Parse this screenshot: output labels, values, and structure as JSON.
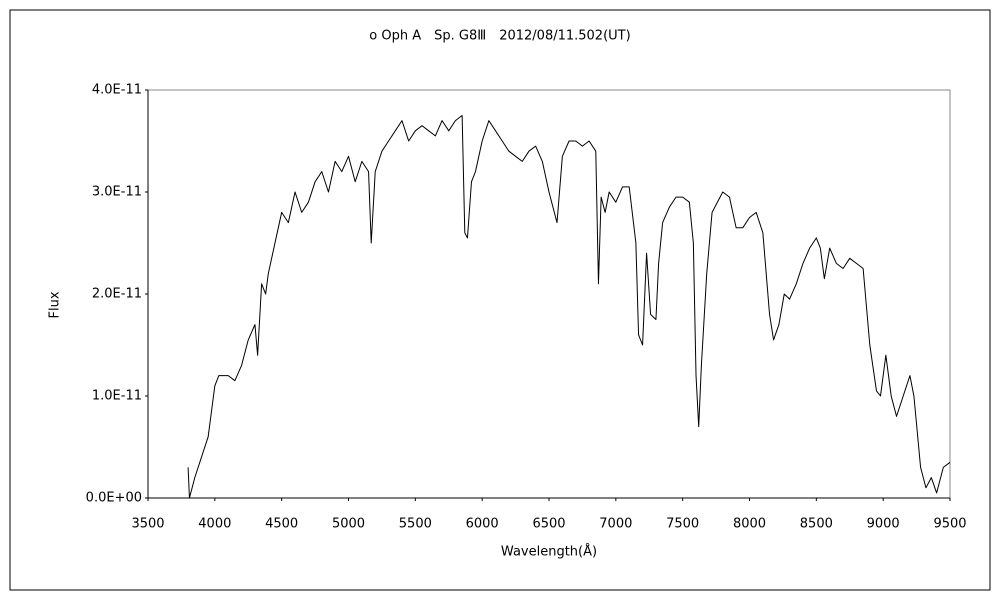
{
  "chart_data": {
    "type": "line",
    "title": "ο Oph A　Sp. G8Ⅲ　2012/08/11.502(UT)",
    "x_label": "Wavelength(Å)",
    "y_label": "Flux",
    "xlim": [
      3500,
      9500
    ],
    "xticks": [
      3500,
      4000,
      4500,
      5000,
      5500,
      6000,
      6500,
      7000,
      7500,
      8000,
      8500,
      9000,
      9500
    ],
    "ylim": [
      0,
      4e-11
    ],
    "yticks": [
      {
        "value": 0,
        "label": "0.0E+00"
      },
      {
        "value": 1e-11,
        "label": "1.0E-11"
      },
      {
        "value": 2e-11,
        "label": "2.0E-11"
      },
      {
        "value": 3e-11,
        "label": "3.0E-11"
      },
      {
        "value": 4e-11,
        "label": "4.0E-11"
      }
    ],
    "grid": false,
    "series": [
      {
        "color": "#000000",
        "x": [
          3800,
          3810,
          3850,
          3900,
          3950,
          4000,
          4030,
          4100,
          4150,
          4200,
          4250,
          4300,
          4320,
          4350,
          4380,
          4400,
          4450,
          4500,
          4550,
          4600,
          4650,
          4700,
          4750,
          4800,
          4850,
          4900,
          4950,
          5000,
          5050,
          5100,
          5150,
          5170,
          5200,
          5250,
          5300,
          5350,
          5400,
          5450,
          5500,
          5550,
          5600,
          5650,
          5700,
          5750,
          5800,
          5850,
          5870,
          5890,
          5920,
          5950,
          6000,
          6050,
          6100,
          6150,
          6200,
          6250,
          6300,
          6350,
          6400,
          6450,
          6500,
          6520,
          6560,
          6600,
          6650,
          6700,
          6750,
          6800,
          6850,
          6870,
          6890,
          6920,
          6950,
          7000,
          7050,
          7100,
          7150,
          7170,
          7200,
          7230,
          7260,
          7300,
          7320,
          7350,
          7400,
          7450,
          7500,
          7550,
          7580,
          7600,
          7620,
          7640,
          7680,
          7720,
          7800,
          7850,
          7900,
          7950,
          8000,
          8050,
          8100,
          8150,
          8180,
          8220,
          8260,
          8300,
          8350,
          8400,
          8450,
          8500,
          8530,
          8560,
          8600,
          8650,
          8700,
          8750,
          8800,
          8850,
          8900,
          8950,
          8980,
          9020,
          9060,
          9100,
          9150,
          9200,
          9230,
          9280,
          9320,
          9360,
          9400,
          9450,
          9500
        ],
        "values": [
          3e-12,
          0,
          2e-12,
          4e-12,
          6e-12,
          1.1e-11,
          1.2e-11,
          1.2e-11,
          1.15e-11,
          1.3e-11,
          1.55e-11,
          1.7e-11,
          1.4e-11,
          2.1e-11,
          2e-11,
          2.2e-11,
          2.5e-11,
          2.8e-11,
          2.7e-11,
          3e-11,
          2.8e-11,
          2.9e-11,
          3.1e-11,
          3.2e-11,
          3e-11,
          3.3e-11,
          3.2e-11,
          3.35e-11,
          3.1e-11,
          3.3e-11,
          3.2e-11,
          2.5e-11,
          3.2e-11,
          3.4e-11,
          3.5e-11,
          3.6e-11,
          3.7e-11,
          3.5e-11,
          3.6e-11,
          3.65e-11,
          3.6e-11,
          3.55e-11,
          3.7e-11,
          3.6e-11,
          3.7e-11,
          3.75e-11,
          2.6e-11,
          2.55e-11,
          3.1e-11,
          3.2e-11,
          3.5e-11,
          3.7e-11,
          3.6e-11,
          3.5e-11,
          3.4e-11,
          3.35e-11,
          3.3e-11,
          3.4e-11,
          3.45e-11,
          3.3e-11,
          3e-11,
          2.9e-11,
          2.7e-11,
          3.35e-11,
          3.5e-11,
          3.5e-11,
          3.45e-11,
          3.5e-11,
          3.4e-11,
          2.1e-11,
          2.95e-11,
          2.8e-11,
          3e-11,
          2.9e-11,
          3.05e-11,
          3.05e-11,
          2.5e-11,
          1.6e-11,
          1.5e-11,
          2.4e-11,
          1.8e-11,
          1.75e-11,
          2.3e-11,
          2.7e-11,
          2.85e-11,
          2.95e-11,
          2.95e-11,
          2.9e-11,
          2.5e-11,
          1.2e-11,
          7e-12,
          1.3e-11,
          2.2e-11,
          2.8e-11,
          3e-11,
          2.95e-11,
          2.65e-11,
          2.65e-11,
          2.75e-11,
          2.8e-11,
          2.6e-11,
          1.8e-11,
          1.55e-11,
          1.7e-11,
          2e-11,
          1.95e-11,
          2.1e-11,
          2.3e-11,
          2.45e-11,
          2.55e-11,
          2.45e-11,
          2.15e-11,
          2.45e-11,
          2.3e-11,
          2.25e-11,
          2.35e-11,
          2.3e-11,
          2.25e-11,
          1.5e-11,
          1.05e-11,
          1e-11,
          1.4e-11,
          1e-11,
          8e-12,
          1e-11,
          1.2e-11,
          1e-11,
          3e-12,
          1e-12,
          2e-12,
          5e-13,
          3e-12,
          3.5e-12
        ]
      }
    ]
  }
}
